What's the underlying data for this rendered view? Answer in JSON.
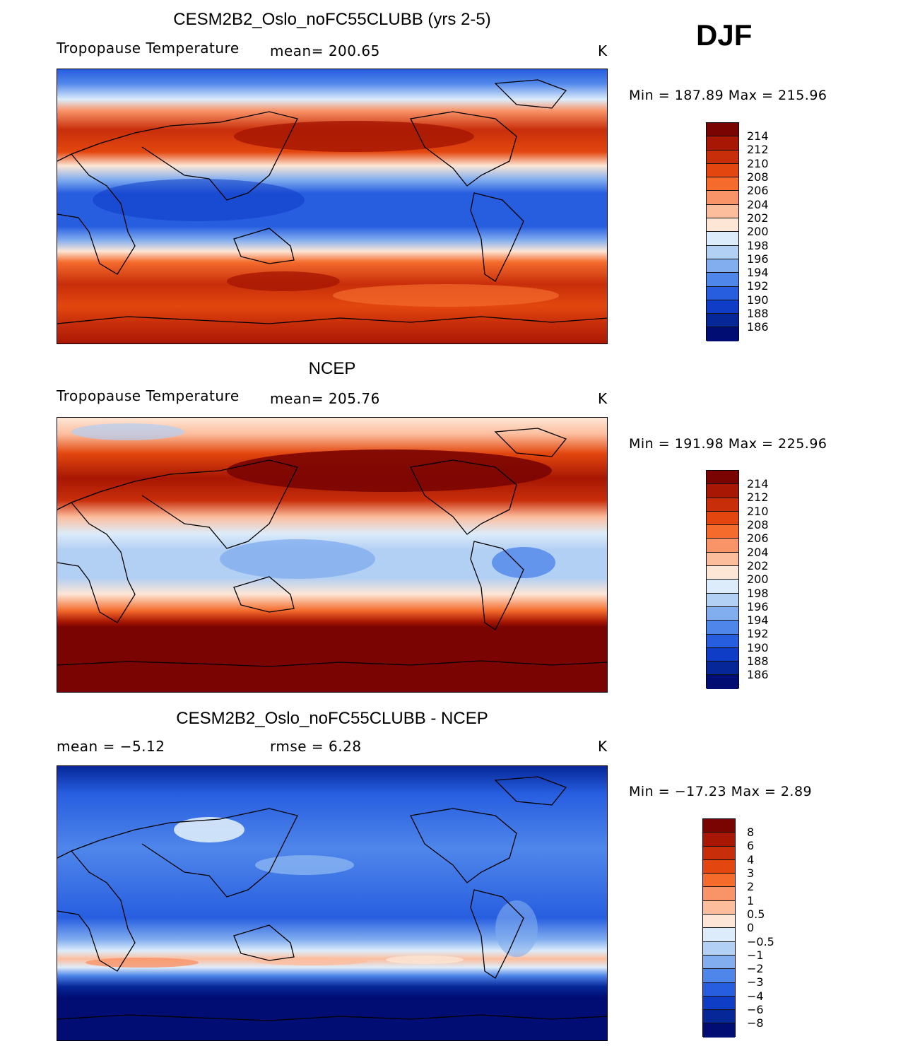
{
  "season": "DJF",
  "panels": [
    {
      "id": "model",
      "title": "CESM2B2_Oslo_noFC55CLUBB (yrs 2-5)",
      "variable": "Tropopause Temperature",
      "mean_text": "mean=  200.65",
      "units": "K",
      "minmax": "Min  =  187.89  Max  =  215.96",
      "colorbar_labels": [
        "214",
        "212",
        "210",
        "208",
        "206",
        "204",
        "202",
        "200",
        "198",
        "196",
        "194",
        "192",
        "190",
        "188",
        "186"
      ]
    },
    {
      "id": "obs",
      "title": "NCEP",
      "variable": "Tropopause Temperature",
      "mean_text": "mean=  205.76",
      "units": "K",
      "minmax": "Min  =  191.98  Max  =  225.96",
      "colorbar_labels": [
        "214",
        "212",
        "210",
        "208",
        "206",
        "204",
        "202",
        "200",
        "198",
        "196",
        "194",
        "192",
        "190",
        "188",
        "186"
      ]
    },
    {
      "id": "diff",
      "title": "CESM2B2_Oslo_noFC55CLUBB - NCEP",
      "mean_text": "mean  =    −5.12",
      "rmse_text": "rmse  =     6.28",
      "units": "K",
      "minmax": "Min  =  −17.23  Max  =      2.89",
      "colorbar_labels": [
        "8",
        "6",
        "4",
        "3",
        "2",
        "1",
        "0.5",
        "0",
        "−0.5",
        "−1",
        "−2",
        "−3",
        "−4",
        "−6",
        "−8"
      ]
    }
  ],
  "palette": {
    "abs": [
      "#7a0402",
      "#a81703",
      "#c82e0a",
      "#e3470f",
      "#f46b2c",
      "#f99468",
      "#fcbd9d",
      "#fde6d6",
      "#ddecfa",
      "#b2cff4",
      "#82aeef",
      "#4f86ea",
      "#275ee0",
      "#0f3dc6",
      "#052798",
      "#010d73"
    ],
    "diff": [
      "#7a0402",
      "#a81703",
      "#c82e0a",
      "#e3470f",
      "#f46b2c",
      "#f99468",
      "#fcbd9d",
      "#fde6d6",
      "#ddecfa",
      "#b2cff4",
      "#82aeef",
      "#4f86ea",
      "#275ee0",
      "#0f3dc6",
      "#052798",
      "#010d73"
    ]
  }
}
